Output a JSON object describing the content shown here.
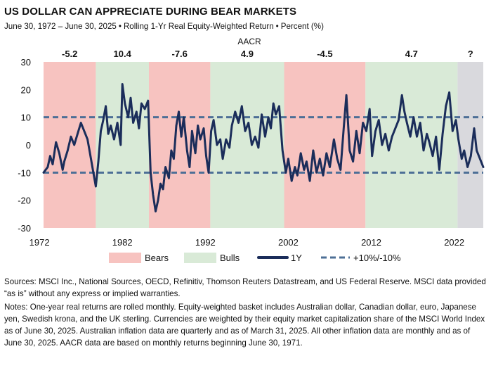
{
  "title": "US DOLLAR CAN APPRECIATE DURING BEAR MARKETS",
  "subtitle": {
    "period": "June 30, 1972 – June 30, 2025",
    "measure": "Rolling 1-Yr Real Equity-Weighted Return",
    "unit": "Percent (%)"
  },
  "colors": {
    "bear": "#f7c3c0",
    "bull": "#d9ead7",
    "unknown": "#d9d9dd",
    "line": "#1b2d5a",
    "threshold": "#4d6f96"
  },
  "chart_data": {
    "type": "line",
    "title": "",
    "xlabel": "",
    "ylabel": "",
    "xlim": [
      1972.5,
      2025.5
    ],
    "ylim": [
      -30,
      30
    ],
    "y_ticks": [
      30,
      20,
      10,
      0,
      -10,
      -20,
      -30
    ],
    "x_ticks": [
      "1972",
      "1982",
      "1992",
      "2002",
      "2012",
      "2022"
    ],
    "aacr_label": "AACR",
    "periods": [
      {
        "type": "bear",
        "start": 1972.5,
        "end": 1978.8,
        "aacr": "-5.2"
      },
      {
        "type": "bull",
        "start": 1978.8,
        "end": 1985.2,
        "aacr": "10.4"
      },
      {
        "type": "bear",
        "start": 1985.2,
        "end": 1992.6,
        "aacr": "-7.6"
      },
      {
        "type": "bull",
        "start": 1992.6,
        "end": 2001.5,
        "aacr": "4.9"
      },
      {
        "type": "bear",
        "start": 2001.5,
        "end": 2011.3,
        "aacr": "-4.5"
      },
      {
        "type": "bull",
        "start": 2011.3,
        "end": 2022.4,
        "aacr": "4.7"
      },
      {
        "type": "unknown",
        "start": 2022.4,
        "end": 2025.5,
        "aacr": "?"
      }
    ],
    "thresholds": [
      10,
      -10
    ],
    "legend": {
      "bears": "Bears",
      "bulls": "Bulls",
      "series": "1Y",
      "threshold": "+10%/-10%"
    },
    "series": [
      {
        "name": "1Y",
        "points": [
          [
            1972.5,
            -10
          ],
          [
            1973.0,
            -8
          ],
          [
            1973.3,
            -4
          ],
          [
            1973.6,
            -7
          ],
          [
            1974.0,
            1
          ],
          [
            1974.4,
            -3
          ],
          [
            1974.8,
            -9
          ],
          [
            1975.0,
            -6
          ],
          [
            1975.4,
            -2
          ],
          [
            1975.8,
            3
          ],
          [
            1976.2,
            0
          ],
          [
            1976.6,
            4
          ],
          [
            1977.0,
            8
          ],
          [
            1977.4,
            5
          ],
          [
            1977.8,
            2
          ],
          [
            1978.1,
            -3
          ],
          [
            1978.5,
            -10
          ],
          [
            1978.8,
            -15
          ],
          [
            1979.1,
            -6
          ],
          [
            1979.4,
            5
          ],
          [
            1979.7,
            9
          ],
          [
            1980.0,
            14
          ],
          [
            1980.3,
            4
          ],
          [
            1980.6,
            7
          ],
          [
            1981.0,
            2
          ],
          [
            1981.4,
            8
          ],
          [
            1981.8,
            0
          ],
          [
            1982.0,
            22
          ],
          [
            1982.3,
            15
          ],
          [
            1982.7,
            10
          ],
          [
            1983.0,
            17
          ],
          [
            1983.3,
            8
          ],
          [
            1983.7,
            12
          ],
          [
            1984.0,
            6
          ],
          [
            1984.3,
            15
          ],
          [
            1984.7,
            13
          ],
          [
            1985.1,
            16
          ],
          [
            1985.4,
            -10
          ],
          [
            1985.7,
            -18
          ],
          [
            1986.0,
            -24
          ],
          [
            1986.3,
            -20
          ],
          [
            1986.6,
            -14
          ],
          [
            1986.9,
            -16
          ],
          [
            1987.2,
            -8
          ],
          [
            1987.6,
            -12
          ],
          [
            1987.9,
            -2
          ],
          [
            1988.2,
            -5
          ],
          [
            1988.5,
            7
          ],
          [
            1988.8,
            12
          ],
          [
            1989.1,
            3
          ],
          [
            1989.4,
            10
          ],
          [
            1989.8,
            -2
          ],
          [
            1990.1,
            -8
          ],
          [
            1990.4,
            5
          ],
          [
            1990.8,
            -3
          ],
          [
            1991.1,
            7
          ],
          [
            1991.4,
            2
          ],
          [
            1991.8,
            6
          ],
          [
            1992.1,
            -4
          ],
          [
            1992.4,
            -10
          ],
          [
            1992.7,
            5
          ],
          [
            1993.0,
            9
          ],
          [
            1993.4,
            0
          ],
          [
            1993.8,
            2
          ],
          [
            1994.1,
            -5
          ],
          [
            1994.5,
            2
          ],
          [
            1994.9,
            -1
          ],
          [
            1995.2,
            7
          ],
          [
            1995.6,
            12
          ],
          [
            1996.0,
            8
          ],
          [
            1996.4,
            14
          ],
          [
            1996.8,
            5
          ],
          [
            1997.2,
            8
          ],
          [
            1997.6,
            0
          ],
          [
            1998.0,
            3
          ],
          [
            1998.4,
            -1
          ],
          [
            1998.8,
            11
          ],
          [
            1999.2,
            3
          ],
          [
            1999.6,
            10
          ],
          [
            1999.9,
            6
          ],
          [
            2000.2,
            15
          ],
          [
            2000.5,
            11
          ],
          [
            2000.9,
            14
          ],
          [
            2001.3,
            -2
          ],
          [
            2001.7,
            -10
          ],
          [
            2002.0,
            -5
          ],
          [
            2002.4,
            -13
          ],
          [
            2002.8,
            -8
          ],
          [
            2003.1,
            -11
          ],
          [
            2003.5,
            -3
          ],
          [
            2003.9,
            -9
          ],
          [
            2004.2,
            -6
          ],
          [
            2004.6,
            -13
          ],
          [
            2005.0,
            -2
          ],
          [
            2005.4,
            -10
          ],
          [
            2005.8,
            -5
          ],
          [
            2006.2,
            -11
          ],
          [
            2006.6,
            -3
          ],
          [
            2007.0,
            -8
          ],
          [
            2007.5,
            2
          ],
          [
            2007.9,
            -5
          ],
          [
            2008.3,
            -9
          ],
          [
            2008.7,
            7
          ],
          [
            2009.0,
            18
          ],
          [
            2009.4,
            -2
          ],
          [
            2009.8,
            -6
          ],
          [
            2010.2,
            5
          ],
          [
            2010.6,
            -3
          ],
          [
            2011.0,
            8
          ],
          [
            2011.4,
            5
          ],
          [
            2011.8,
            13
          ],
          [
            2012.1,
            -4
          ],
          [
            2012.5,
            5
          ],
          [
            2012.9,
            9
          ],
          [
            2013.3,
            0
          ],
          [
            2013.7,
            4
          ],
          [
            2014.1,
            -2
          ],
          [
            2014.5,
            3
          ],
          [
            2014.9,
            6
          ],
          [
            2015.3,
            9
          ],
          [
            2015.7,
            18
          ],
          [
            2016.0,
            12
          ],
          [
            2016.3,
            8
          ],
          [
            2016.7,
            3
          ],
          [
            2017.1,
            10
          ],
          [
            2017.5,
            3
          ],
          [
            2017.9,
            8
          ],
          [
            2018.3,
            -2
          ],
          [
            2018.7,
            4
          ],
          [
            2019.0,
            1
          ],
          [
            2019.4,
            -4
          ],
          [
            2019.8,
            3
          ],
          [
            2020.2,
            -9
          ],
          [
            2020.6,
            4
          ],
          [
            2021.0,
            14
          ],
          [
            2021.4,
            19
          ],
          [
            2021.8,
            5
          ],
          [
            2022.2,
            9
          ],
          [
            2022.5,
            2
          ],
          [
            2022.9,
            -5
          ],
          [
            2023.2,
            -2
          ],
          [
            2023.6,
            -8
          ],
          [
            2024.0,
            -4
          ],
          [
            2024.4,
            6
          ],
          [
            2024.7,
            -2
          ],
          [
            2025.1,
            -5
          ],
          [
            2025.5,
            -8
          ]
        ]
      }
    ]
  },
  "sources_text": "Sources: MSCI Inc., National Sources, OECD, Refinitiv, Thomson Reuters Datastream, and US Federal Reserve. MSCI data provided “as is” without any express or implied warranties.",
  "notes_text": "Notes: One-year real returns are rolled monthly. Equity-weighted basket includes Australian dollar, Canadian dollar, euro, Japanese yen, Swedish krona, and the UK sterling. Currencies are weighted by their equity market capitalization share of the MSCI World Index as of June 30, 2025. Australian inflation data are quarterly and as of March 31, 2025. All other inflation data are monthly and as of June 30, 2025. AACR data are based on monthly returns beginning June 30, 1971."
}
